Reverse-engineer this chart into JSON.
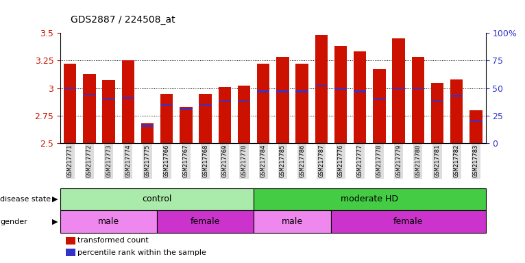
{
  "title": "GDS2887 / 224508_at",
  "samples": [
    "GSM217771",
    "GSM217772",
    "GSM217773",
    "GSM217774",
    "GSM217775",
    "GSM217766",
    "GSM217767",
    "GSM217768",
    "GSM217769",
    "GSM217770",
    "GSM217784",
    "GSM217785",
    "GSM217786",
    "GSM217787",
    "GSM217776",
    "GSM217777",
    "GSM217778",
    "GSM217779",
    "GSM217780",
    "GSM217781",
    "GSM217782",
    "GSM217783"
  ],
  "bar_heights": [
    3.22,
    3.13,
    3.07,
    3.25,
    2.68,
    2.95,
    2.83,
    2.95,
    3.01,
    3.02,
    3.22,
    3.28,
    3.22,
    3.48,
    3.38,
    3.33,
    3.17,
    3.45,
    3.28,
    3.05,
    3.08,
    2.8
  ],
  "blue_positions": [
    0.5,
    0.44,
    0.4,
    0.41,
    0.16,
    0.35,
    0.31,
    0.35,
    0.38,
    0.38,
    0.47,
    0.47,
    0.47,
    0.52,
    0.49,
    0.47,
    0.4,
    0.5,
    0.5,
    0.38,
    0.43,
    0.2
  ],
  "ylim_left": [
    2.5,
    3.5
  ],
  "ylim_right": [
    0,
    100
  ],
  "yticks_left": [
    2.5,
    2.75,
    3.0,
    3.25,
    3.5
  ],
  "yticks_right": [
    0,
    25,
    50,
    75,
    100
  ],
  "ytick_labels_left": [
    "2.5",
    "2.75",
    "3",
    "3.25",
    "3.5"
  ],
  "ytick_labels_right": [
    "0",
    "25",
    "50",
    "75",
    "100%"
  ],
  "bar_color": "#cc1100",
  "blue_color": "#3333cc",
  "bar_width": 0.65,
  "disease_state_groups": [
    {
      "label": "control",
      "start": 0,
      "end": 10,
      "color": "#aaeaaa"
    },
    {
      "label": "moderate HD",
      "start": 10,
      "end": 22,
      "color": "#44cc44"
    }
  ],
  "gender_groups": [
    {
      "label": "male",
      "start": 0,
      "end": 5,
      "color": "#ee88ee"
    },
    {
      "label": "female",
      "start": 5,
      "end": 10,
      "color": "#cc33cc"
    },
    {
      "label": "male",
      "start": 10,
      "end": 14,
      "color": "#ee88ee"
    },
    {
      "label": "female",
      "start": 14,
      "end": 22,
      "color": "#cc33cc"
    }
  ],
  "legend_items": [
    {
      "label": "transformed count",
      "color": "#cc1100"
    },
    {
      "label": "percentile rank within the sample",
      "color": "#3333cc"
    }
  ],
  "grid_color": "black",
  "bg_color": "#ffffff",
  "axis_left_color": "#cc1100",
  "axis_right_color": "#3333cc",
  "xtick_bg": "#dddddd"
}
